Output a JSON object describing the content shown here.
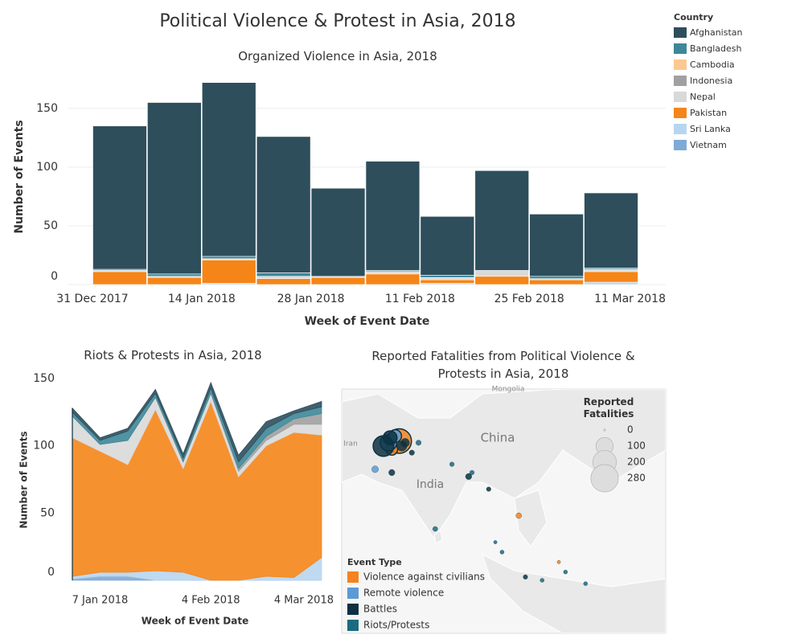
{
  "dashboard_title": "Political Violence & Protest in Asia, 2018",
  "countries": {
    "title": "Country",
    "names": [
      "Afghanistan",
      "Bangladesh",
      "Cambodia",
      "Indonesia",
      "Nepal",
      "Pakistan",
      "Sri Lanka",
      "Vietnam"
    ],
    "colors": [
      "#2e4e5c",
      "#3d8799",
      "#fcc892",
      "#a0a0a0",
      "#d9d9d9",
      "#f58518",
      "#b8d5f0",
      "#7eaad6"
    ]
  },
  "chart_data": [
    {
      "type": "bar",
      "title": "Organized Violence in Asia, 2018",
      "x_label": "Week of Event Date",
      "y_label": "Number of Events",
      "x": [
        "2017-12-31",
        "2018-01-07",
        "2018-01-14",
        "2018-01-21",
        "2018-01-28",
        "2018-02-04",
        "2018-02-11",
        "2018-02-18",
        "2018-02-25",
        "2018-03-04"
      ],
      "xlim": [
        "2017-12-31",
        "2018-03-11"
      ],
      "xticks": [
        {
          "value": "2017-12-31",
          "label": "31 Dec 2017"
        },
        {
          "value": "2018-01-14",
          "label": "14 Jan 2018"
        },
        {
          "value": "2018-01-28",
          "label": "28 Jan 2018"
        },
        {
          "value": "2018-02-11",
          "label": "11 Feb 2018"
        },
        {
          "value": "2018-02-25",
          "label": "25 Feb 2018"
        },
        {
          "value": "2018-03-11",
          "label": "11 Mar 2018"
        }
      ],
      "ylim": [
        0,
        180
      ],
      "yticks": [
        0,
        50,
        100,
        150
      ],
      "grid": true,
      "stacked": true,
      "series": [
        {
          "values": [
            122,
            146,
            148,
            116,
            75,
            93,
            50,
            85,
            53,
            64
          ]
        },
        {
          "values": [
            1,
            2,
            2,
            3,
            0,
            1,
            2,
            0,
            2,
            1
          ]
        },
        {
          "values": [
            0,
            0,
            0,
            0,
            0,
            0,
            0,
            0,
            0,
            0
          ]
        },
        {
          "values": [
            0,
            0,
            0,
            0,
            0,
            0,
            0,
            0,
            0,
            0
          ]
        },
        {
          "values": [
            1,
            1,
            1,
            2,
            1,
            2,
            2,
            5,
            1,
            2
          ]
        },
        {
          "values": [
            11,
            6,
            20,
            5,
            6,
            9,
            3,
            7,
            4,
            9
          ]
        },
        {
          "values": [
            0,
            0,
            1,
            0,
            0,
            0,
            1,
            0,
            0,
            2
          ]
        },
        {
          "values": [
            0,
            0,
            0,
            0,
            0,
            0,
            0,
            0,
            0,
            0
          ]
        }
      ]
    },
    {
      "type": "area",
      "title": "Riots & Protests in Asia, 2018",
      "x_label": "Week of Event Date",
      "y_label": "Number of Events",
      "x": [
        "2017-12-31",
        "2018-01-07",
        "2018-01-14",
        "2018-01-21",
        "2018-01-28",
        "2018-02-04",
        "2018-02-11",
        "2018-02-18",
        "2018-02-25",
        "2018-03-04"
      ],
      "xlim": [
        "2017-12-31",
        "2018-03-04"
      ],
      "xticks": [
        {
          "value": "2018-01-07",
          "label": "7 Jan 2018"
        },
        {
          "value": "2018-02-04",
          "label": "4 Feb 2018"
        },
        {
          "value": "2018-03-04",
          "label": "4 Mar 2018"
        }
      ],
      "ylim": [
        0,
        150
      ],
      "yticks": [
        0,
        50,
        100,
        150
      ],
      "grid": false,
      "stacked": true,
      "series": [
        {
          "values": [
            3,
            2,
            2,
            3,
            3,
            4,
            5,
            5,
            2,
            4
          ]
        },
        {
          "values": [
            3,
            3,
            7,
            3,
            3,
            4,
            5,
            6,
            4,
            5
          ]
        },
        {
          "values": [
            0,
            0,
            0,
            0,
            0,
            0,
            0,
            0,
            0,
            0
          ]
        },
        {
          "values": [
            0,
            0,
            0,
            0,
            0,
            0,
            2,
            3,
            4,
            8
          ]
        },
        {
          "values": [
            16,
            5,
            18,
            9,
            5,
            6,
            4,
            4,
            6,
            8
          ]
        },
        {
          "values": [
            103,
            90,
            80,
            120,
            77,
            133,
            77,
            97,
            108,
            91
          ]
        },
        {
          "values": [
            2,
            3,
            3,
            7,
            6,
            0,
            0,
            3,
            2,
            17
          ]
        },
        {
          "values": [
            1,
            3,
            3,
            0,
            0,
            0,
            0,
            0,
            0,
            0
          ]
        }
      ]
    },
    {
      "type": "map",
      "title": "Reported Fatalities from Political Violence & Protests in Asia, 2018",
      "places": [
        "Mongolia",
        "Iran",
        "China",
        "India"
      ],
      "xlim": [
        52,
        149
      ],
      "ylim": [
        -23.5,
        50.2
      ],
      "size_legend": {
        "title": "Reported Fatalities",
        "values": [
          0,
          100,
          200,
          280
        ]
      },
      "legend_title": "Event Type",
      "series": [
        {
          "name": "Violence against civilians",
          "color": "#f5831f",
          "lon": [
            69.2,
            67,
            105,
            117
          ],
          "lat": [
            34.5,
            32,
            12,
            -2
          ],
          "values": [
            220,
            40,
            6,
            1
          ]
        },
        {
          "name": "Remote violence",
          "color": "#5b9bd5",
          "lon": [
            66,
            68,
            62
          ],
          "lat": [
            34,
            36,
            26
          ],
          "values": [
            90,
            50,
            10
          ]
        },
        {
          "name": "Battles",
          "color": "#0c3142",
          "lon": [
            64.5,
            66.5,
            70,
            71,
            67,
            73,
            90,
            96,
            107
          ],
          "lat": [
            33,
            35.5,
            33,
            34,
            25,
            31,
            23.8,
            20,
            -6.5
          ],
          "values": [
            150,
            60,
            30,
            20,
            8,
            5,
            8,
            3,
            3
          ]
        },
        {
          "name": "Riots/Protests",
          "color": "#1b6b80",
          "lon": [
            75,
            85,
            91,
            80,
            112,
            119,
            100,
            98,
            125
          ],
          "lat": [
            34,
            27.5,
            25,
            8,
            -7.5,
            -5,
            1,
            4,
            -8.5
          ],
          "values": [
            5,
            3,
            3,
            4,
            2,
            2,
            2,
            1,
            2
          ]
        }
      ]
    }
  ]
}
